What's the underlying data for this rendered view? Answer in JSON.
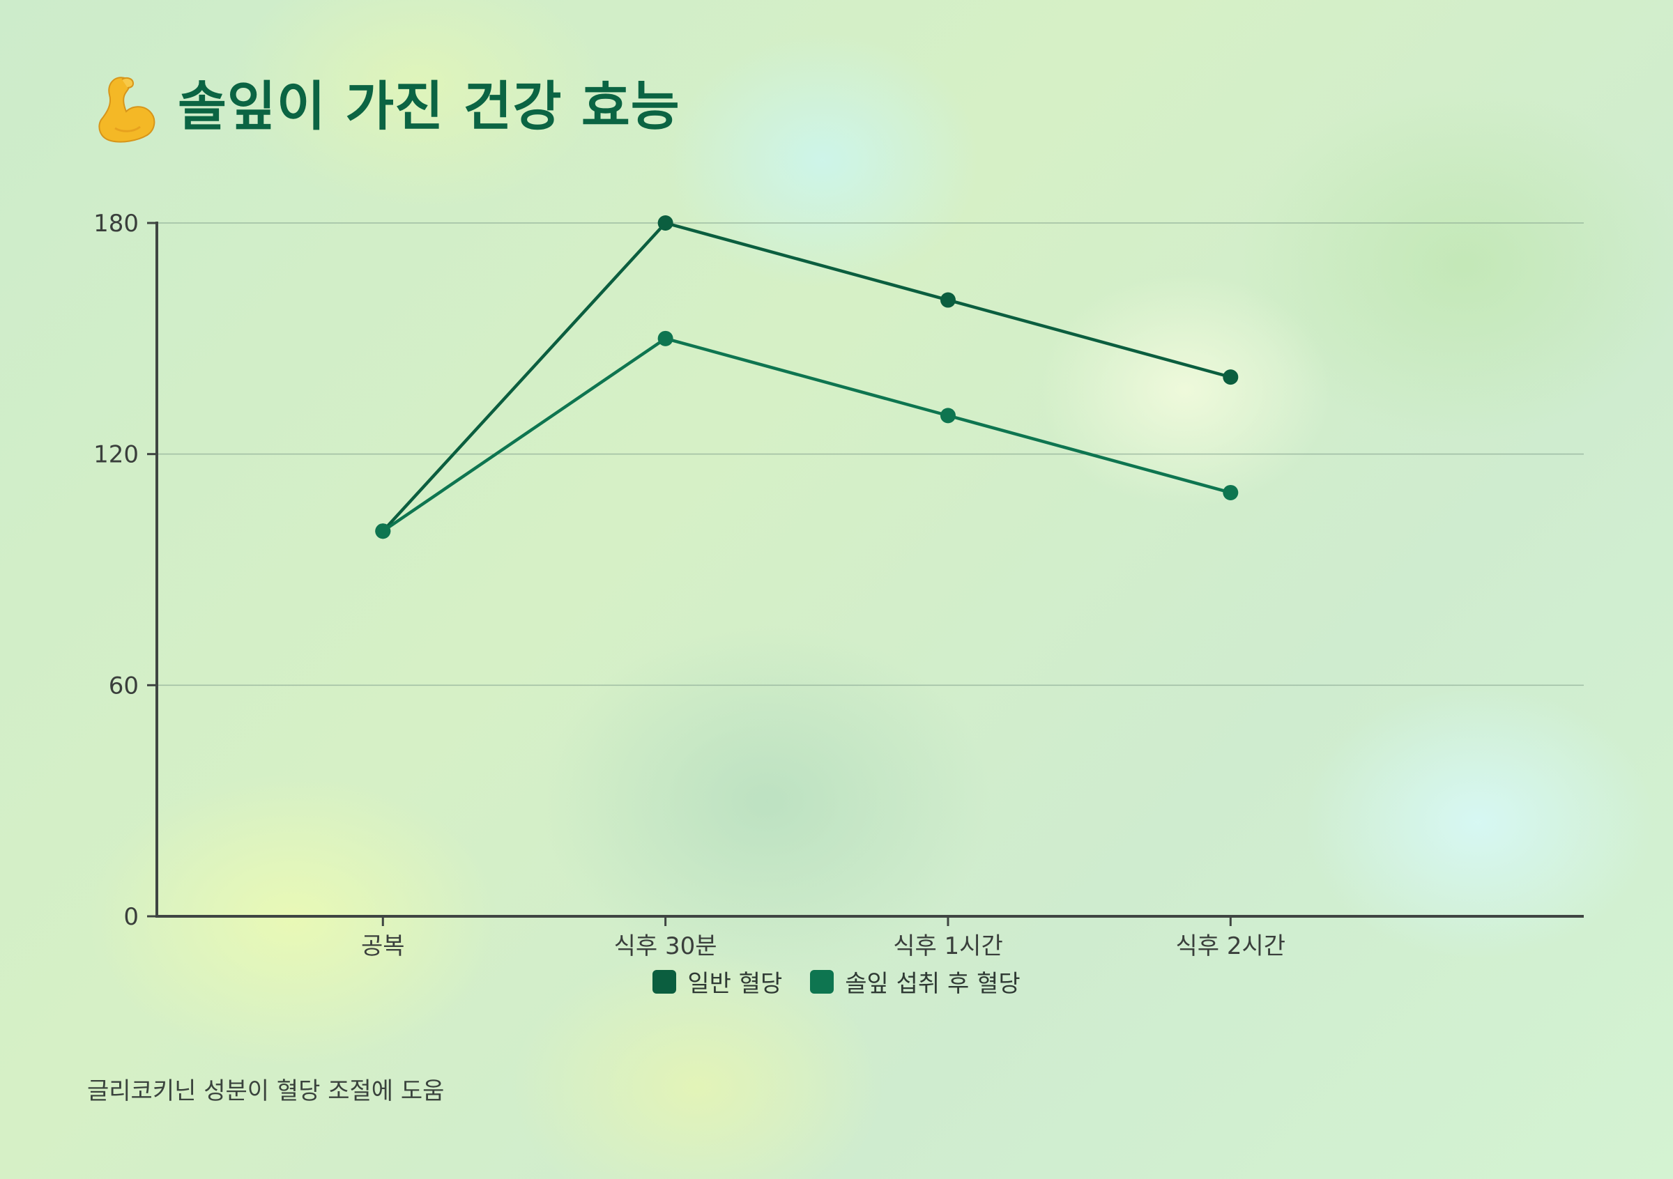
{
  "chart_data": {
    "type": "line",
    "title": "솔잎이 가진 건강 효능",
    "title_icon": "flexed-biceps-icon",
    "categories": [
      "공복",
      "식후 30분",
      "식후 1시간",
      "식후 2시간"
    ],
    "series": [
      {
        "name": "일반 혈당",
        "values": [
          100,
          180,
          160,
          140
        ],
        "color": "#0b5e3f"
      },
      {
        "name": "솔잎 섭취 후 혈당",
        "values": [
          100,
          150,
          130,
          110
        ],
        "color": "#0e7550"
      }
    ],
    "ylim": [
      0,
      180
    ],
    "yticks": [
      0,
      60,
      120,
      180
    ],
    "grid": true,
    "legend_position": "bottom-center",
    "xlabel": "",
    "ylabel": "",
    "footnote": "글리코키닌 성분이 혈당 조절에 도움"
  }
}
